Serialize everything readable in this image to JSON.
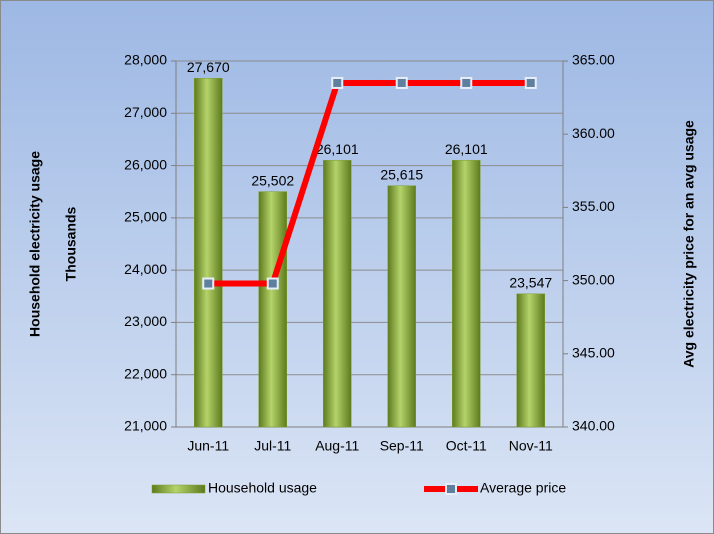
{
  "chart_data": {
    "type": "bar",
    "categories": [
      "Jun-11",
      "Jul-11",
      "Aug-11",
      "Sep-11",
      "Oct-11",
      "Nov-11"
    ],
    "series": [
      {
        "name": "Household usage",
        "type": "bar",
        "color": "#7f9f32",
        "values": [
          27670,
          25502,
          26101,
          25615,
          26101,
          23547
        ],
        "value_labels": [
          "27,670",
          "25,502",
          "26,101",
          "25,615",
          "26,101",
          "23,547"
        ]
      },
      {
        "name": "Average price",
        "type": "line",
        "axis": "y2",
        "color": "#ff0000",
        "values": [
          349.8,
          349.8,
          363.5,
          363.5,
          363.5,
          363.5
        ]
      }
    ],
    "ylabel": "Household electricity usage",
    "yunit": "Thousands",
    "y2label": "Avg electricity price for an avg usage",
    "ylim": [
      21000,
      28000
    ],
    "yticks": [
      {
        "value": 21000,
        "label": "21,000"
      },
      {
        "value": 22000,
        "label": "22,000"
      },
      {
        "value": 23000,
        "label": "23,000"
      },
      {
        "value": 24000,
        "label": "24,000"
      },
      {
        "value": 25000,
        "label": "25,000"
      },
      {
        "value": 26000,
        "label": "26,000"
      },
      {
        "value": 27000,
        "label": "27,000"
      },
      {
        "value": 28000,
        "label": "28,000"
      }
    ],
    "y2lim": [
      340,
      365
    ],
    "y2ticks": [
      {
        "value": 340,
        "label": "340.00"
      },
      {
        "value": 345,
        "label": "345.00"
      },
      {
        "value": 350,
        "label": "350.00"
      },
      {
        "value": 355,
        "label": "355.00"
      },
      {
        "value": 360,
        "label": "360.00"
      },
      {
        "value": 365,
        "label": "365.00"
      }
    ],
    "grid": true,
    "legend": "bottom"
  }
}
